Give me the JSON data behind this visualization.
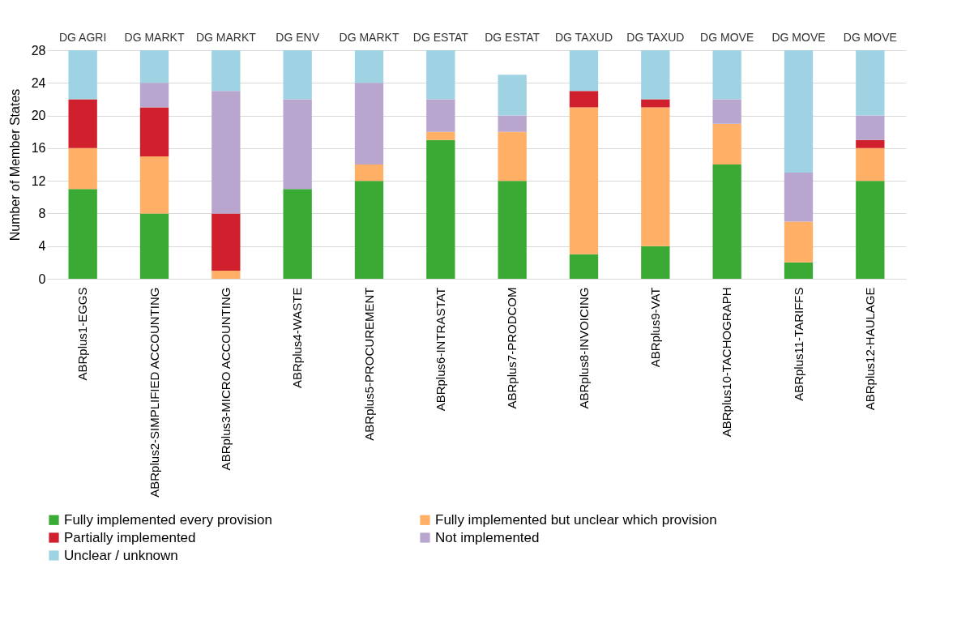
{
  "chart_data": {
    "type": "bar",
    "stacked": true,
    "ylabel": "Number of Member States",
    "ylim": [
      0,
      28
    ],
    "yticks": [
      0,
      4,
      8,
      12,
      16,
      20,
      24,
      28
    ],
    "grid": "y",
    "legend": "bottom",
    "categories": [
      "ABRplus1-EGGS",
      "ABRplus2-SIMPLIFIED ACCOUNTING",
      "ABRplus3-MICRO ACCOUNTING",
      "ABRplus4-WASTE",
      "ABRplus5-PROCUREMENT",
      "ABRplus6-INTRASTAT",
      "ABRplus7-PRODCOM",
      "ABRplus8-INVOICING",
      "ABRplus9-VAT",
      "ABRplus10-TACHOGRAPH",
      "ABRplus11-TARIFFS",
      "ABRplus12-HAULAGE"
    ],
    "series": [
      {
        "name": "Fully implemented every provision",
        "color": "#3aaa35",
        "values": [
          11,
          8,
          0,
          11,
          12,
          17,
          12,
          3,
          4,
          14,
          2,
          12
        ]
      },
      {
        "name": "Fully implemented but unclear which provision",
        "color": "#ffb066",
        "values": [
          5,
          7,
          1,
          0,
          2,
          1,
          6,
          18,
          17,
          5,
          5,
          4
        ]
      },
      {
        "name": "Partially implemented",
        "color": "#d0202e",
        "values": [
          6,
          6,
          7,
          0,
          0,
          0,
          0,
          2,
          1,
          0,
          0,
          1
        ]
      },
      {
        "name": "Not implemented",
        "color": "#b9a6cf",
        "values": [
          0,
          3,
          15,
          11,
          10,
          4,
          2,
          0,
          0,
          3,
          6,
          3
        ]
      },
      {
        "name": "Unclear / unknown",
        "color": "#9fd3e3",
        "values": [
          6,
          4,
          5,
          6,
          4,
          6,
          5,
          5,
          6,
          6,
          15,
          8
        ]
      }
    ],
    "annotations": [
      "DG AGRI",
      "DG MARKT",
      "DG MARKT",
      "DG ENV",
      "DG MARKT",
      "DG ESTAT",
      "DG ESTAT",
      "DG TAXUD",
      "DG TAXUD",
      "DG MOVE",
      "DG MOVE",
      "DG MOVE"
    ]
  }
}
